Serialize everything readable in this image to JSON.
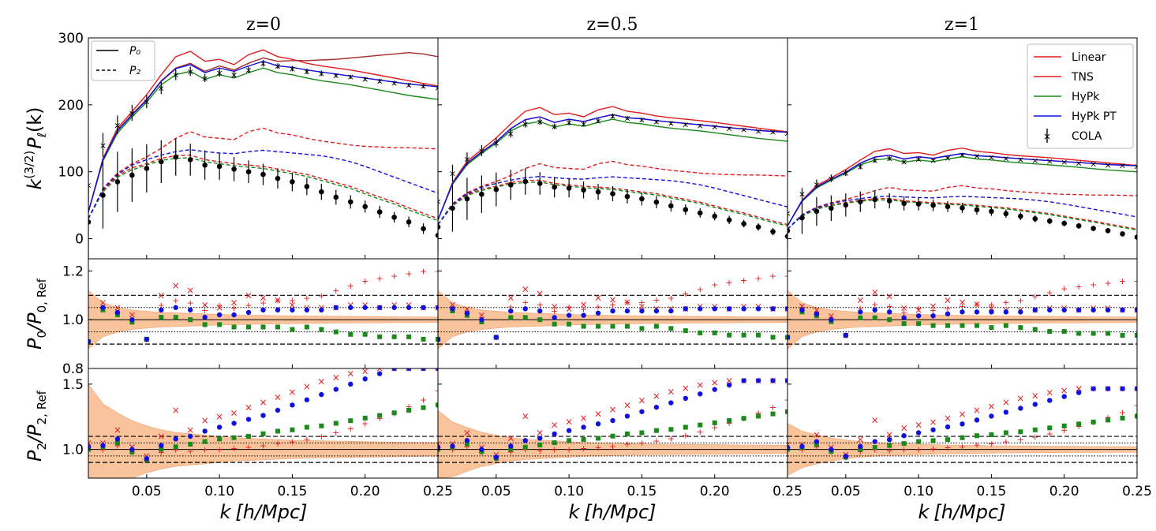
{
  "figure": {
    "xlabel_prefix": "k",
    "xlabel_unit": "[h/Mpc]",
    "ylabel_top_k": "k",
    "ylabel_top_sup": "(3/2)",
    "ylabel_top_p": "P",
    "ylabel_top_sub": "ℓ",
    "ylabel_top_tail": "(k)",
    "ylabel_mid": "P₀/P₀, Ref",
    "ylabel_mid_a": "P",
    "ylabel_mid_a_sub": "0",
    "ylabel_mid_b": "/P",
    "ylabel_mid_b_sub": "0, Ref",
    "ylabel_bot_a": "P",
    "ylabel_bot_a_sub": "2",
    "ylabel_bot_b": "/P",
    "ylabel_bot_b_sub": "2, Ref"
  },
  "colors": {
    "linear": "#e31a1c",
    "tns": "#e31a1c",
    "tns_high_k": "#a52a2a",
    "hypk": "#1a8a1a",
    "hypk_pt": "#1010e0",
    "cola": "#000000",
    "band": "#f9c39b",
    "band_edge": "#f0a070"
  },
  "chart_data": {
    "type": "line",
    "panels": [
      {
        "title": "z=0",
        "amp": 1.0,
        "hi_tail": 1
      },
      {
        "title": "z=0.5",
        "amp": 0.7,
        "hi_tail": 0
      },
      {
        "title": "z=1",
        "amp": 0.48,
        "hi_tail": 0
      }
    ],
    "x_range": [
      0.01,
      0.25
    ],
    "x_ticks": [
      0.05,
      0.1,
      0.15,
      0.2,
      0.25
    ],
    "x_tick_labels": [
      "0.05",
      "0.10",
      "0.15",
      "0.20",
      "0.25"
    ],
    "top": {
      "ylim": [
        -30,
        300
      ],
      "y_ticks": [
        0,
        100,
        200,
        300
      ],
      "y_tick_labels": [
        "0",
        "100",
        "200",
        "300"
      ],
      "k": [
        0.01,
        0.02,
        0.03,
        0.04,
        0.05,
        0.06,
        0.07,
        0.08,
        0.09,
        0.1,
        0.11,
        0.12,
        0.13,
        0.14,
        0.15,
        0.16,
        0.17,
        0.18,
        0.19,
        0.2,
        0.21,
        0.22,
        0.23,
        0.24,
        0.25
      ],
      "P0_linear": [
        40,
        120,
        165,
        190,
        215,
        245,
        272,
        280,
        265,
        268,
        260,
        275,
        282,
        272,
        268,
        262,
        258,
        255,
        252,
        248,
        244,
        240,
        236,
        232,
        228
      ],
      "P0_tns": [
        40,
        118,
        162,
        186,
        208,
        236,
        255,
        262,
        250,
        258,
        252,
        262,
        270,
        265,
        266,
        266,
        267,
        268,
        270,
        272,
        274,
        276,
        278,
        276,
        272
      ],
      "P0_hypk": [
        40,
        116,
        158,
        182,
        204,
        230,
        245,
        250,
        238,
        245,
        240,
        248,
        255,
        248,
        245,
        240,
        236,
        233,
        230,
        226,
        222,
        218,
        214,
        211,
        208
      ],
      "P0_hypk_pt": [
        40,
        118,
        161,
        185,
        207,
        235,
        254,
        260,
        248,
        255,
        250,
        258,
        265,
        258,
        256,
        252,
        249,
        246,
        243,
        240,
        237,
        234,
        231,
        229,
        227
      ],
      "P2_linear": [
        30,
        75,
        98,
        112,
        122,
        135,
        150,
        160,
        152,
        150,
        148,
        160,
        165,
        158,
        155,
        150,
        146,
        143,
        140,
        138,
        137,
        136,
        136,
        135,
        134
      ],
      "P2_tns": [
        30,
        72,
        94,
        106,
        112,
        120,
        124,
        125,
        118,
        115,
        112,
        110,
        108,
        104,
        100,
        96,
        90,
        84,
        78,
        70,
        62,
        55,
        46,
        38,
        30
      ],
      "P2_hypk": [
        30,
        70,
        92,
        103,
        110,
        117,
        120,
        121,
        115,
        112,
        109,
        107,
        105,
        101,
        97,
        93,
        87,
        81,
        75,
        67,
        59,
        52,
        43,
        35,
        27
      ],
      "P2_hypk_pt": [
        30,
        74,
        96,
        110,
        118,
        125,
        130,
        133,
        130,
        128,
        127,
        130,
        132,
        130,
        128,
        126,
        124,
        120,
        115,
        108,
        100,
        92,
        84,
        76,
        68
      ],
      "cola_P0": [
        80,
        140,
        170,
        188,
        205,
        225,
        245,
        250,
        240,
        248,
        245,
        252,
        262,
        258,
        254,
        250,
        247,
        244,
        242,
        239,
        236,
        233,
        230,
        228,
        226
      ],
      "cola_P0_err": [
        25,
        18,
        14,
        12,
        10,
        9,
        8,
        7,
        6,
        6,
        5,
        5,
        5,
        4,
        4,
        4,
        4,
        3,
        3,
        3,
        3,
        3,
        3,
        3,
        3
      ],
      "cola_P2": [
        25,
        65,
        85,
        95,
        105,
        115,
        122,
        118,
        110,
        108,
        104,
        100,
        96,
        90,
        85,
        78,
        70,
        62,
        55,
        48,
        40,
        32,
        25,
        15,
        5
      ],
      "cola_P2_err": [
        55,
        50,
        45,
        40,
        36,
        32,
        28,
        24,
        22,
        20,
        18,
        17,
        16,
        15,
        14,
        13,
        12,
        11,
        10,
        9,
        9,
        8,
        8,
        8,
        8
      ]
    },
    "mid": {
      "ylim": [
        0.8,
        1.25
      ],
      "y_ticks": [
        0.8,
        1.0,
        1.2
      ],
      "y_tick_labels": [
        "0.8",
        "1.0",
        "1.2"
      ],
      "ref_lines": {
        "dashed": [
          0.9,
          1.1
        ],
        "dotted": [
          0.95,
          1.05
        ],
        "solid": [
          1.0
        ]
      },
      "k": [
        0.01,
        0.02,
        0.03,
        0.04,
        0.05,
        0.06,
        0.07,
        0.08,
        0.09,
        0.1,
        0.11,
        0.12,
        0.13,
        0.14,
        0.15,
        0.16,
        0.17,
        0.18,
        0.19,
        0.2,
        0.21,
        0.22,
        0.23,
        0.24,
        0.25
      ],
      "linear_x": [
        0.91,
        1.07,
        1.05,
        1.02,
        0.92,
        1.1,
        1.14,
        1.12,
        1.06,
        1.05,
        1.07,
        1.1,
        1.09,
        1.08,
        1.06,
        1.05,
        1.05,
        1.05,
        1.06,
        1.06,
        1.05,
        1.06,
        1.06,
        1.05,
        1.05
      ],
      "tns_plus": [
        0.91,
        1.05,
        1.03,
        1.0,
        0.92,
        1.06,
        1.08,
        1.07,
        1.04,
        1.06,
        1.05,
        1.06,
        1.07,
        1.08,
        1.08,
        1.09,
        1.1,
        1.12,
        1.14,
        1.16,
        1.17,
        1.18,
        1.19,
        1.2,
        1.2
      ],
      "hypk": [
        0.91,
        1.04,
        1.02,
        0.99,
        0.92,
        1.01,
        1.01,
        1.0,
        0.98,
        0.98,
        0.97,
        0.97,
        0.97,
        0.97,
        0.96,
        0.97,
        0.96,
        0.95,
        0.94,
        0.94,
        0.93,
        0.93,
        0.93,
        0.92,
        0.92
      ],
      "hypk_pt": [
        0.91,
        1.05,
        1.03,
        1.0,
        0.92,
        1.04,
        1.05,
        1.04,
        1.01,
        1.02,
        1.02,
        1.03,
        1.04,
        1.04,
        1.04,
        1.04,
        1.04,
        1.05,
        1.05,
        1.05,
        1.05,
        1.05,
        1.05,
        1.05,
        1.05
      ],
      "band_half_width": [
        0.12,
        0.07,
        0.05,
        0.04,
        0.035,
        0.03,
        0.028,
        0.026,
        0.024,
        0.022,
        0.02,
        0.019,
        0.018,
        0.017,
        0.016,
        0.015,
        0.015,
        0.014,
        0.014,
        0.013,
        0.013,
        0.012,
        0.012,
        0.012,
        0.011
      ]
    },
    "bot": {
      "ylim": [
        0.78,
        1.62
      ],
      "y_ticks": [
        1.0,
        1.5
      ],
      "y_tick_labels": [
        "1.0",
        "1.5"
      ],
      "ref_lines": {
        "dashed": [
          0.9,
          1.1
        ],
        "dotted": [
          0.95,
          1.05
        ],
        "solid": [
          1.0
        ]
      },
      "k": [
        0.01,
        0.02,
        0.03,
        0.04,
        0.05,
        0.06,
        0.07,
        0.08,
        0.09,
        0.1,
        0.11,
        0.12,
        0.13,
        0.14,
        0.15,
        0.16,
        0.17,
        0.18,
        0.19,
        0.2,
        0.21,
        0.22,
        0.23,
        0.24,
        0.25
      ],
      "linear_x": [
        1.05,
        1.05,
        1.15,
        1.02,
        0.95,
        1.1,
        1.3,
        1.15,
        1.22,
        1.25,
        1.28,
        1.32,
        1.36,
        1.4,
        1.44,
        1.48,
        1.52,
        1.55,
        1.58,
        1.6,
        1.62,
        1.62,
        1.62,
        1.62,
        1.62
      ],
      "tns_plus": [
        1.02,
        1.0,
        1.03,
        0.98,
        0.92,
        0.98,
        1.0,
        0.99,
        1.0,
        1.0,
        1.01,
        1.02,
        1.03,
        1.05,
        1.06,
        1.08,
        1.1,
        1.13,
        1.16,
        1.2,
        1.24,
        1.28,
        1.33,
        1.38,
        1.45
      ],
      "hypk": [
        1.0,
        1.02,
        1.05,
        0.98,
        0.92,
        1.0,
        1.02,
        1.04,
        1.06,
        1.08,
        1.09,
        1.1,
        1.12,
        1.14,
        1.15,
        1.17,
        1.18,
        1.2,
        1.22,
        1.24,
        1.26,
        1.28,
        1.3,
        1.32,
        1.34
      ],
      "hypk_pt": [
        1.02,
        1.03,
        1.08,
        1.0,
        0.93,
        1.03,
        1.08,
        1.1,
        1.14,
        1.17,
        1.2,
        1.23,
        1.26,
        1.3,
        1.34,
        1.38,
        1.42,
        1.46,
        1.5,
        1.54,
        1.58,
        1.62,
        1.62,
        1.62,
        1.62
      ],
      "band_half_width": [
        0.5,
        0.35,
        0.28,
        0.22,
        0.18,
        0.15,
        0.13,
        0.12,
        0.11,
        0.1,
        0.09,
        0.085,
        0.08,
        0.075,
        0.07,
        0.068,
        0.066,
        0.064,
        0.062,
        0.06,
        0.058,
        0.056,
        0.055,
        0.054,
        0.053
      ]
    },
    "panel_scales": {
      "mid_ratio_scale": [
        1.0,
        0.9,
        0.8
      ],
      "bot_ratio_scale": [
        1.0,
        0.85,
        0.75
      ],
      "bot_band_scale": [
        1.0,
        0.6,
        0.4
      ]
    },
    "legend_styles": [
      {
        "label": "P₀",
        "style": "solid"
      },
      {
        "label": "P₂",
        "style": "dashed"
      }
    ],
    "legend_models": [
      {
        "label": "Linear",
        "color": "#e31a1c",
        "marker": "line"
      },
      {
        "label": "TNS",
        "color": "#e31a1c",
        "marker": "line"
      },
      {
        "label": "HyPk",
        "color": "#1a8a1a",
        "marker": "line"
      },
      {
        "label": "HyPk PT",
        "color": "#1010e0",
        "marker": "line"
      },
      {
        "label": "COLA",
        "color": "#000000",
        "marker": "errorbar"
      }
    ]
  }
}
